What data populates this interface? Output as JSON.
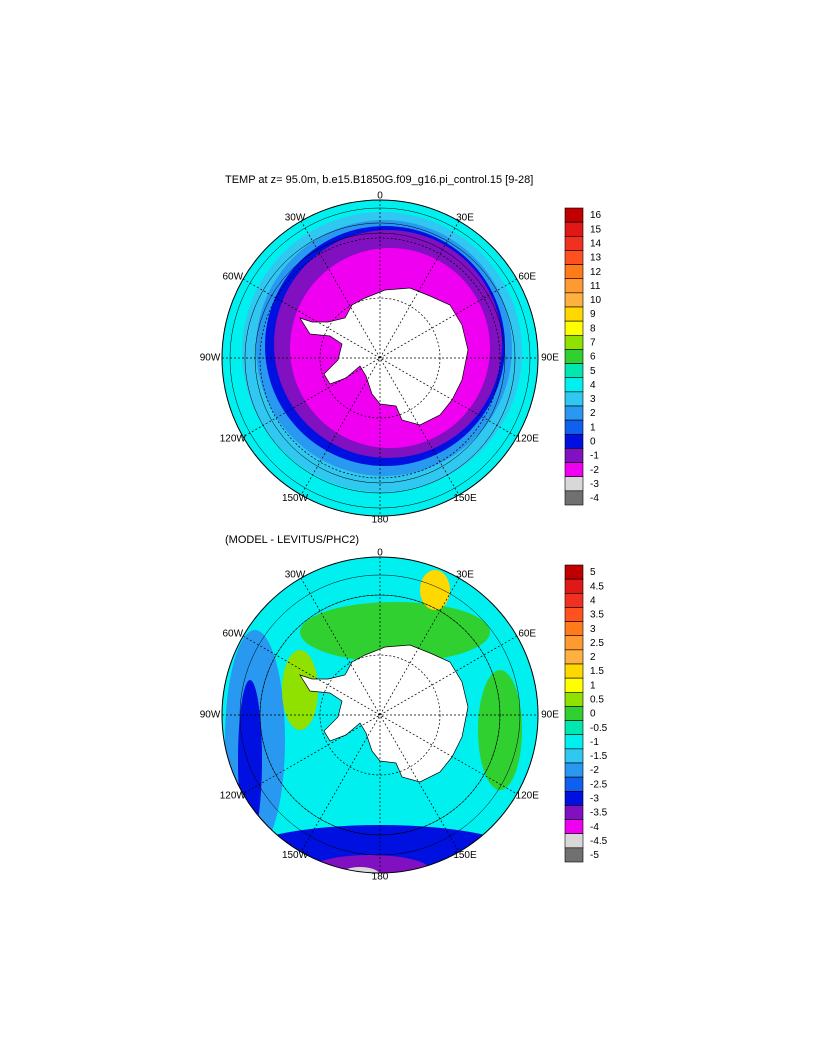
{
  "maps": [
    {
      "title": "TEMP at z=  95.0m, b.e15.B1850G.f09_g16.pi_control.15 [9-28]",
      "lon_labels": [
        "0",
        "30E",
        "60E",
        "90E",
        "120E",
        "150E",
        "180",
        "150W",
        "120W",
        "90W",
        "60W",
        "30W"
      ],
      "colorbar": {
        "levels": [
          16,
          15,
          14,
          13,
          12,
          11,
          10,
          9,
          8,
          7,
          6,
          5,
          4,
          3,
          2,
          1,
          0,
          -1,
          -2,
          -3,
          -4
        ],
        "colors": [
          "#c00000",
          "#e01818",
          "#f03020",
          "#ff5020",
          "#ff7a18",
          "#ff9a30",
          "#ffb040",
          "#ffd800",
          "#ffff00",
          "#90e000",
          "#30d030",
          "#00e8b0",
          "#00f0f0",
          "#30c8f0",
          "#2898f0",
          "#1060f0",
          "#0010e0",
          "#8010c0",
          "#f000f0",
          "#d8d8d8",
          "#707070"
        ]
      }
    },
    {
      "title": "(MODEL - LEVITUS/PHC2)",
      "lon_labels": [
        "0",
        "30E",
        "60E",
        "90E",
        "120E",
        "150E",
        "180",
        "150W",
        "120W",
        "90W",
        "60W",
        "30W"
      ],
      "colorbar": {
        "levels": [
          5,
          4.5,
          4,
          3.5,
          3,
          2.5,
          2,
          1.5,
          1,
          0.5,
          0,
          -0.5,
          -1,
          -1.5,
          -2,
          -2.5,
          -3,
          -3.5,
          -4,
          -4.5,
          -5
        ],
        "colors": [
          "#c00000",
          "#e01818",
          "#f03020",
          "#ff5020",
          "#ff7a18",
          "#ff9a30",
          "#ffb040",
          "#ffd800",
          "#ffff00",
          "#90e000",
          "#30d030",
          "#00e8b0",
          "#00f0f0",
          "#30c8f0",
          "#2898f0",
          "#1060f0",
          "#0010e0",
          "#8010c0",
          "#f000f0",
          "#d8d8d8",
          "#707070"
        ]
      }
    }
  ]
}
